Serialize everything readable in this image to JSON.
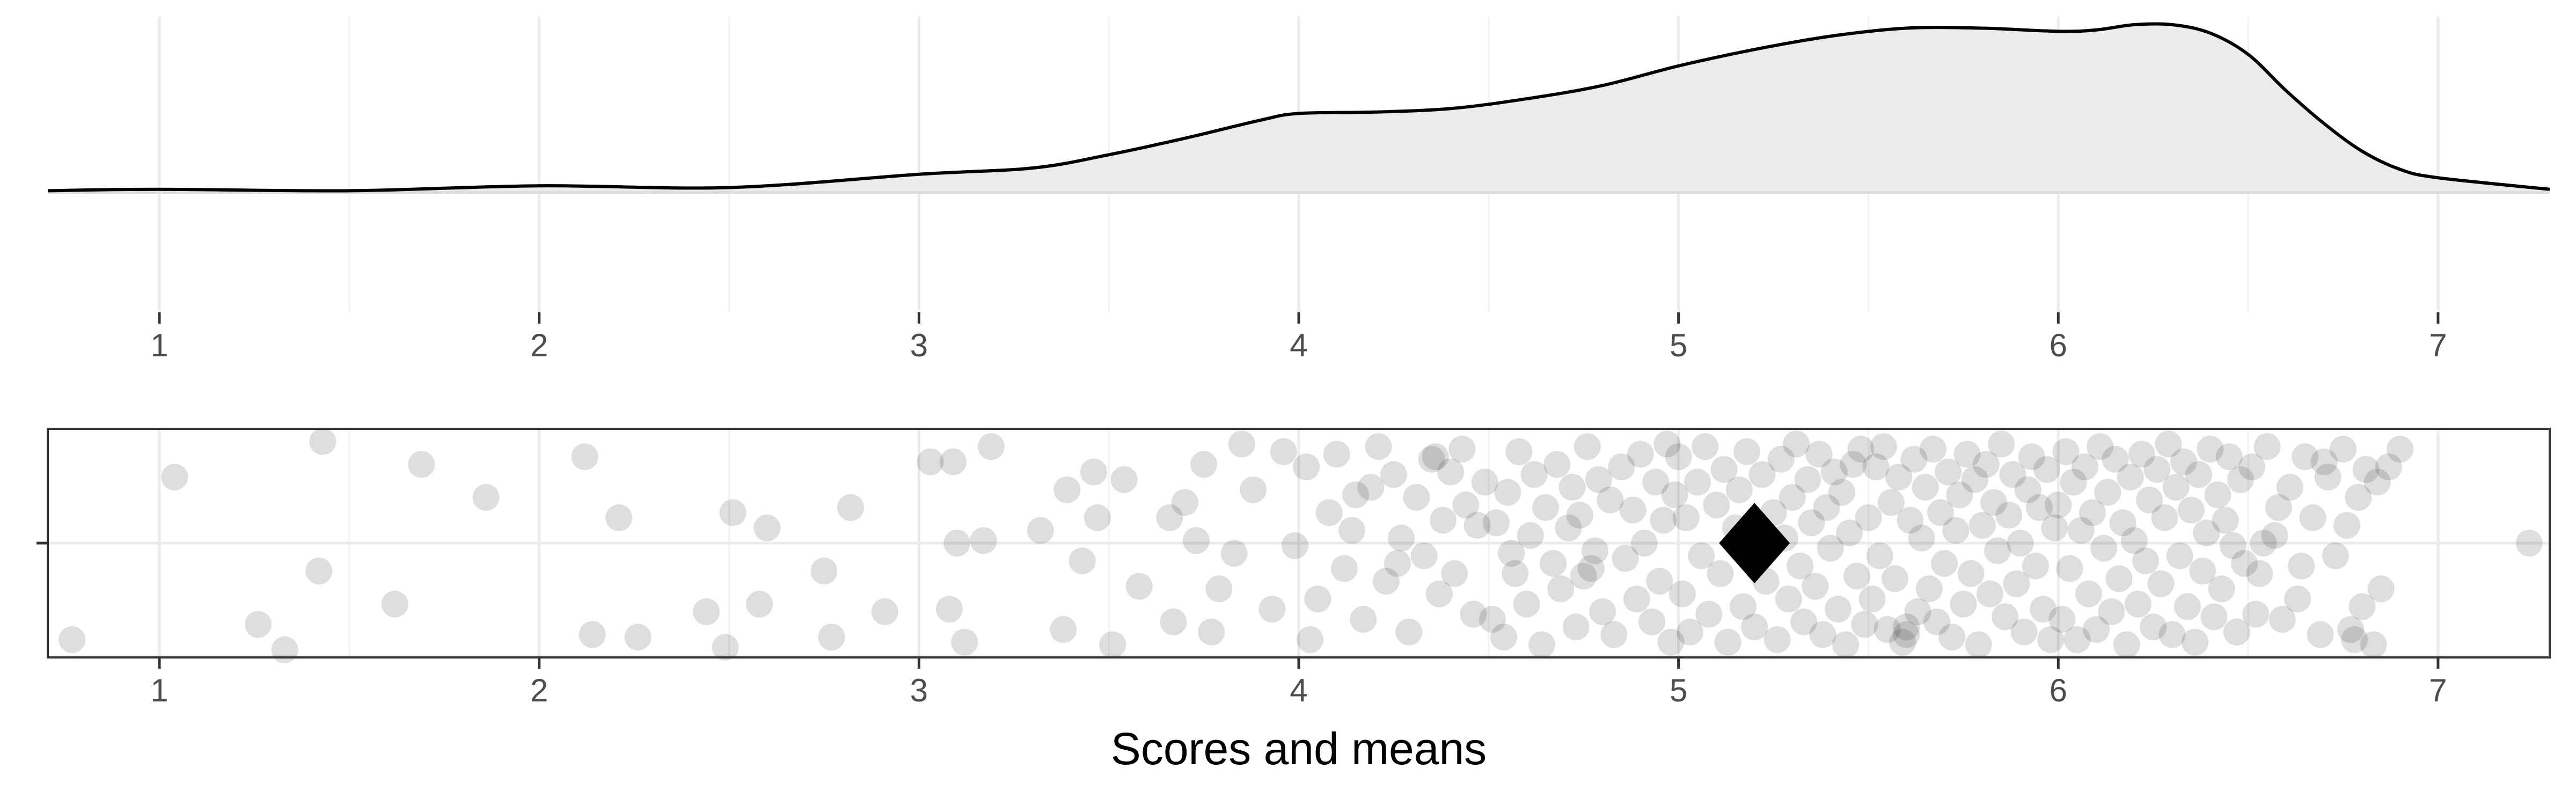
{
  "chart_data": [
    {
      "type": "density",
      "x": [
        0.706,
        1.0,
        1.5,
        2.0,
        2.5,
        3.0,
        3.3,
        3.5,
        3.7,
        3.9,
        4.0,
        4.2,
        4.4,
        4.6,
        4.8,
        5.0,
        5.2,
        5.4,
        5.6,
        5.8,
        6.0,
        6.1,
        6.2,
        6.3,
        6.4,
        6.5,
        6.6,
        6.7,
        6.8,
        6.9,
        7.0,
        7.294
      ],
      "values": [
        0.005,
        0.009,
        0.005,
        0.019,
        0.014,
        0.052,
        0.07,
        0.108,
        0.155,
        0.207,
        0.226,
        0.23,
        0.24,
        0.268,
        0.306,
        0.362,
        0.409,
        0.447,
        0.47,
        0.47,
        0.461,
        0.465,
        0.48,
        0.48,
        0.456,
        0.395,
        0.291,
        0.197,
        0.118,
        0.066,
        0.042,
        0.009
      ],
      "color": "#000000",
      "fill": "#ebebeb",
      "xlim": [
        0.706,
        7.294
      ],
      "xticks": [
        1,
        2,
        3,
        4,
        5,
        6,
        7
      ],
      "xminor": [
        1.5,
        2.5,
        3.5,
        4.5,
        5.5,
        6.5
      ],
      "ylim": [
        -0.343,
        0.503
      ],
      "yticks": [
        0
      ],
      "grid": true
    },
    {
      "type": "scatter",
      "x_label": "Scores and means",
      "x": [
        0.77,
        1.04,
        1.26,
        1.33,
        1.42,
        1.43,
        1.62,
        1.69,
        1.86,
        2.12,
        2.14,
        2.21,
        2.26,
        2.44,
        2.49,
        2.51,
        2.58,
        2.6,
        2.75,
        2.77,
        2.82,
        2.91,
        3.03,
        3.08,
        3.09,
        3.1,
        3.12,
        3.17,
        3.19,
        3.32,
        3.38,
        3.39,
        3.43,
        3.46,
        3.47,
        3.51,
        3.54,
        3.58,
        3.66,
        3.67,
        3.7,
        3.73,
        3.75,
        3.77,
        3.79,
        3.83,
        3.85,
        3.88,
        3.93,
        3.96,
        3.99,
        4.02,
        4.05,
        4.08,
        4.1,
        4.12,
        4.14,
        4.17,
        4.19,
        4.21,
        4.23,
        4.25,
        4.27,
        4.29,
        4.31,
        4.33,
        4.35,
        4.37,
        4.38,
        4.4,
        4.41,
        4.43,
        4.44,
        4.46,
        4.47,
        4.49,
        4.03,
        4.15,
        4.26,
        4.36,
        4.51,
        4.52,
        4.54,
        4.55,
        4.57,
        4.58,
        4.6,
        4.61,
        4.62,
        4.64,
        4.65,
        4.67,
        4.68,
        4.69,
        4.71,
        4.72,
        4.73,
        4.74,
        4.75,
        4.76,
        4.78,
        4.79,
        4.8,
        4.82,
        4.83,
        4.85,
        4.86,
        4.88,
        4.89,
        4.9,
        4.91,
        4.93,
        4.94,
        4.95,
        4.96,
        4.97,
        4.98,
        4.99,
        4.56,
        4.77,
        5.0,
        5.01,
        5.02,
        5.03,
        5.05,
        5.06,
        5.07,
        5.08,
        5.1,
        5.11,
        5.12,
        5.13,
        5.15,
        5.16,
        5.17,
        5.18,
        5.2,
        5.22,
        5.23,
        5.25,
        5.26,
        5.27,
        5.28,
        5.29,
        5.3,
        5.31,
        5.32,
        5.33,
        5.34,
        5.35,
        5.36,
        5.37,
        5.38,
        5.39,
        5.4,
        5.41,
        5.42,
        5.43,
        5.44,
        5.45,
        5.46,
        5.47,
        5.48,
        5.49,
        5.5,
        5.51,
        5.52,
        5.53,
        5.54,
        5.55,
        5.56,
        5.57,
        5.58,
        5.59,
        5.6,
        5.61,
        5.62,
        5.63,
        5.64,
        5.65,
        5.66,
        5.67,
        5.68,
        5.69,
        5.7,
        5.71,
        5.72,
        5.73,
        5.74,
        5.75,
        5.76,
        5.77,
        5.78,
        5.79,
        5.8,
        5.81,
        5.82,
        5.83,
        5.84,
        5.85,
        5.86,
        5.87,
        5.88,
        5.89,
        5.9,
        5.91,
        5.92,
        5.93,
        5.94,
        5.95,
        5.96,
        5.97,
        5.98,
        5.99,
        5.6,
        6.0,
        6.01,
        6.02,
        6.03,
        6.04,
        6.05,
        6.06,
        6.07,
        6.08,
        6.09,
        6.1,
        6.11,
        6.12,
        6.13,
        6.14,
        6.15,
        6.16,
        6.17,
        6.18,
        6.19,
        6.2,
        6.21,
        6.22,
        6.23,
        6.24,
        6.25,
        6.26,
        6.27,
        6.28,
        6.29,
        6.3,
        6.31,
        6.32,
        6.33,
        6.34,
        6.35,
        6.36,
        6.37,
        6.38,
        6.39,
        6.4,
        6.41,
        6.42,
        6.43,
        6.44,
        6.45,
        6.46,
        6.47,
        6.48,
        6.49,
        6.51,
        6.53,
        6.55,
        6.57,
        6.59,
        6.61,
        6.63,
        6.65,
        6.67,
        6.69,
        6.71,
        6.73,
        6.75,
        6.77,
        6.79,
        6.81,
        6.83,
        6.85,
        6.87,
        6.9,
        6.52,
        6.58,
        6.64,
        6.7,
        6.76,
        6.8,
        6.84,
        6.54,
        6.78,
        7.24
      ],
      "values": [
        -0.38,
        0.26,
        -0.32,
        -0.42,
        -0.11,
        0.4,
        -0.24,
        0.31,
        0.18,
        0.34,
        -0.36,
        0.1,
        -0.37,
        -0.27,
        -0.41,
        0.12,
        -0.24,
        0.06,
        -0.11,
        -0.37,
        0.14,
        -0.27,
        0.32,
        -0.26,
        0.32,
        0.0,
        -0.39,
        0.01,
        0.38,
        0.05,
        -0.34,
        0.21,
        -0.07,
        0.28,
        0.1,
        -0.4,
        0.25,
        -0.17,
        0.1,
        -0.31,
        0.16,
        0.01,
        0.31,
        -0.35,
        -0.18,
        -0.04,
        0.39,
        0.21,
        -0.26,
        0.36,
        -0.01,
        0.3,
        -0.22,
        0.12,
        0.35,
        -0.1,
        0.05,
        -0.3,
        0.22,
        0.38,
        -0.15,
        0.27,
        0.02,
        -0.35,
        0.18,
        -0.05,
        0.33,
        -0.2,
        0.09,
        0.28,
        -0.12,
        0.37,
        0.15,
        -0.28,
        0.07,
        0.24,
        -0.38,
        0.19,
        -0.08,
        0.34,
        -0.3,
        0.08,
        -0.37,
        0.2,
        -0.12,
        0.36,
        -0.24,
        0.03,
        0.27,
        -0.4,
        0.14,
        -0.08,
        0.31,
        -0.18,
        0.06,
        0.22,
        -0.33,
        0.11,
        -0.13,
        0.38,
        -0.03,
        0.25,
        -0.27,
        0.17,
        -0.36,
        0.3,
        -0.06,
        0.13,
        -0.22,
        0.35,
        0.0,
        -0.31,
        0.24,
        -0.15,
        0.09,
        0.39,
        -0.39,
        0.19,
        -0.04,
        -0.1,
        0.34,
        -0.2,
        0.1,
        -0.35,
        0.24,
        -0.05,
        0.38,
        -0.28,
        0.15,
        -0.12,
        0.29,
        -0.39,
        0.06,
        0.21,
        -0.25,
        0.36,
        -0.33,
        0.27,
        -0.15,
        0.12,
        -0.38,
        0.33,
        0.02,
        -0.22,
        0.18,
        0.39,
        -0.09,
        -0.31,
        0.25,
        0.08,
        -0.17,
        0.35,
        -0.36,
        0.14,
        -0.02,
        0.28,
        -0.26,
        0.2,
        -0.4,
        0.04,
        0.31,
        -0.13,
        0.37,
        -0.32,
        0.1,
        -0.22,
        0.3,
        -0.05,
        0.38,
        -0.34,
        0.16,
        -0.14,
        0.26,
        -0.39,
        -0.36,
        0.09,
        0.33,
        -0.27,
        0.02,
        0.22,
        -0.18,
        0.37,
        -0.31,
        0.12,
        -0.08,
        0.28,
        -0.37,
        0.05,
        0.19,
        -0.24,
        0.35,
        -0.12,
        0.25,
        -0.4,
        0.07,
        0.31,
        -0.2,
        0.16,
        -0.03,
        0.39,
        -0.29,
        0.11,
        0.27,
        -0.16,
        0.0,
        -0.35,
        0.21,
        0.34,
        -0.09,
        0.14,
        -0.26,
        0.29,
        -0.38,
        0.06,
        -0.33,
        0.15,
        -0.3,
        0.36,
        -0.1,
        0.24,
        -0.38,
        0.05,
        0.3,
        -0.2,
        0.12,
        -0.34,
        0.38,
        -0.02,
        0.2,
        -0.27,
        0.33,
        -0.14,
        0.08,
        -0.4,
        0.26,
        0.01,
        -0.24,
        0.35,
        -0.07,
        0.17,
        -0.33,
        0.29,
        -0.16,
        0.1,
        0.39,
        -0.36,
        0.22,
        -0.05,
        0.32,
        -0.25,
        0.13,
        -0.39,
        0.27,
        -0.11,
        0.04,
        0.37,
        -0.29,
        0.19,
        -0.18,
        0.09,
        0.34,
        -0.01,
        -0.35,
        0.25,
        -0.08,
        0.3,
        -0.12,
        0.38,
        0.03,
        -0.3,
        0.22,
        -0.22,
        0.34,
        0.1,
        -0.36,
        0.26,
        -0.05,
        0.37,
        -0.34,
        0.18,
        0.29,
        -0.4,
        -0.18,
        0.3,
        0.37,
        -0.28,
        0.14,
        -0.09,
        0.32,
        0.07,
        -0.25,
        0.24,
        0.0,
        -0.38,
        0.0
      ],
      "color": "#000000",
      "alpha": 0.13,
      "mean": 5.2,
      "mean_y": 0,
      "mean_color": "#000000",
      "xlim": [
        0.706,
        7.294
      ],
      "xticks": [
        1,
        2,
        3,
        4,
        5,
        6,
        7
      ],
      "xminor": [
        1.5,
        2.5,
        3.5,
        4.5,
        5.5,
        6.5
      ],
      "ylim": [
        -0.45,
        0.45
      ],
      "yticks": [
        0
      ],
      "grid": true
    }
  ]
}
